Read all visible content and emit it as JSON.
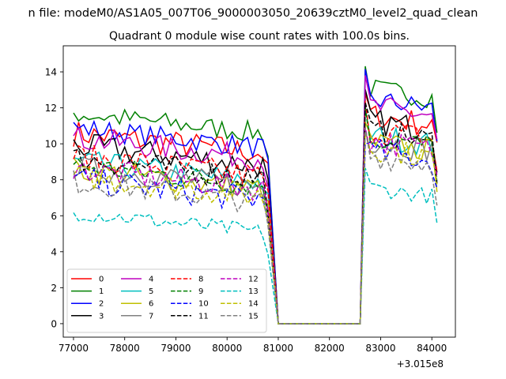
{
  "figure": {
    "suptitle": "n file: modeM0/AS1A05_007T06_9000003050_20639cztM0_level2_quad_clean",
    "offset_text": "+3.015e8"
  },
  "chart_data": {
    "type": "line",
    "title": "Quadrant 0 module wise count rates with 100.0s bins.",
    "xlabel": "",
    "ylabel": "",
    "x_offset": 301500000,
    "xlim": [
      76800,
      84460
    ],
    "ylim": [
      -0.75,
      15.45
    ],
    "xticks": [
      77000,
      78000,
      79000,
      80000,
      81000,
      82000,
      83000,
      84000
    ],
    "yticks": [
      0,
      2,
      4,
      6,
      8,
      10,
      12,
      14
    ],
    "grid": false,
    "legend": {
      "placement": "lower-left",
      "ncol": 4
    },
    "segments": [
      {
        "name": "before_gap",
        "x_start": 77000,
        "x_step": 100,
        "count": 39
      },
      {
        "name": "gap",
        "x": [
          80900,
          81000,
          82600
        ],
        "values": [
          null,
          0,
          0
        ]
      },
      {
        "name": "after_gap",
        "x_start": 82700,
        "x_step": 100,
        "count": 15
      }
    ],
    "series": [
      {
        "name": "0",
        "color": "#ff0000",
        "dash": "solid",
        "level_before": 10.6,
        "level_after": 11.6,
        "jitter": 0.75
      },
      {
        "name": "1",
        "color": "#008000",
        "dash": "solid",
        "level_before": 11.7,
        "level_after": 13.1,
        "jitter": 0.6
      },
      {
        "name": "2",
        "color": "#0000ff",
        "dash": "solid",
        "level_before": 10.9,
        "level_after": 12.5,
        "jitter": 0.6
      },
      {
        "name": "3",
        "color": "#000000",
        "dash": "solid",
        "level_before": 9.9,
        "level_after": 11.3,
        "jitter": 0.75
      },
      {
        "name": "4",
        "color": "#bf00bf",
        "dash": "solid",
        "level_before": 10.3,
        "level_after": 12.1,
        "jitter": 0.7
      },
      {
        "name": "5",
        "color": "#00bfbf",
        "dash": "solid",
        "level_before": 9.0,
        "level_after": 10.5,
        "jitter": 0.7
      },
      {
        "name": "6",
        "color": "#bfbf00",
        "dash": "solid",
        "level_before": 8.6,
        "level_after": 10.1,
        "jitter": 0.7
      },
      {
        "name": "7",
        "color": "#808080",
        "dash": "solid",
        "level_before": 8.7,
        "level_after": 10.2,
        "jitter": 0.7
      },
      {
        "name": "8",
        "color": "#ff0000",
        "dash": "dashed",
        "level_before": 9.3,
        "level_after": 10.8,
        "jitter": 0.75
      },
      {
        "name": "9",
        "color": "#008000",
        "dash": "dashed",
        "level_before": 8.8,
        "level_after": 10.4,
        "jitter": 0.7
      },
      {
        "name": "10",
        "color": "#0000ff",
        "dash": "dashed",
        "level_before": 8.0,
        "level_after": 9.6,
        "jitter": 0.75
      },
      {
        "name": "11",
        "color": "#000000",
        "dash": "dashed",
        "level_before": 9.2,
        "level_after": 10.7,
        "jitter": 0.75
      },
      {
        "name": "12",
        "color": "#bf00bf",
        "dash": "dashed",
        "level_before": 8.6,
        "level_after": 10.2,
        "jitter": 0.7
      },
      {
        "name": "13",
        "color": "#00bfbf",
        "dash": "dashed",
        "level_before": 6.2,
        "level_after": 7.6,
        "jitter": 0.45
      },
      {
        "name": "14",
        "color": "#bfbf00",
        "dash": "dashed",
        "level_before": 8.2,
        "level_after": 9.8,
        "jitter": 0.7
      },
      {
        "name": "15",
        "color": "#808080",
        "dash": "dashed",
        "level_before": 7.9,
        "level_after": 9.4,
        "jitter": 0.7
      }
    ]
  }
}
